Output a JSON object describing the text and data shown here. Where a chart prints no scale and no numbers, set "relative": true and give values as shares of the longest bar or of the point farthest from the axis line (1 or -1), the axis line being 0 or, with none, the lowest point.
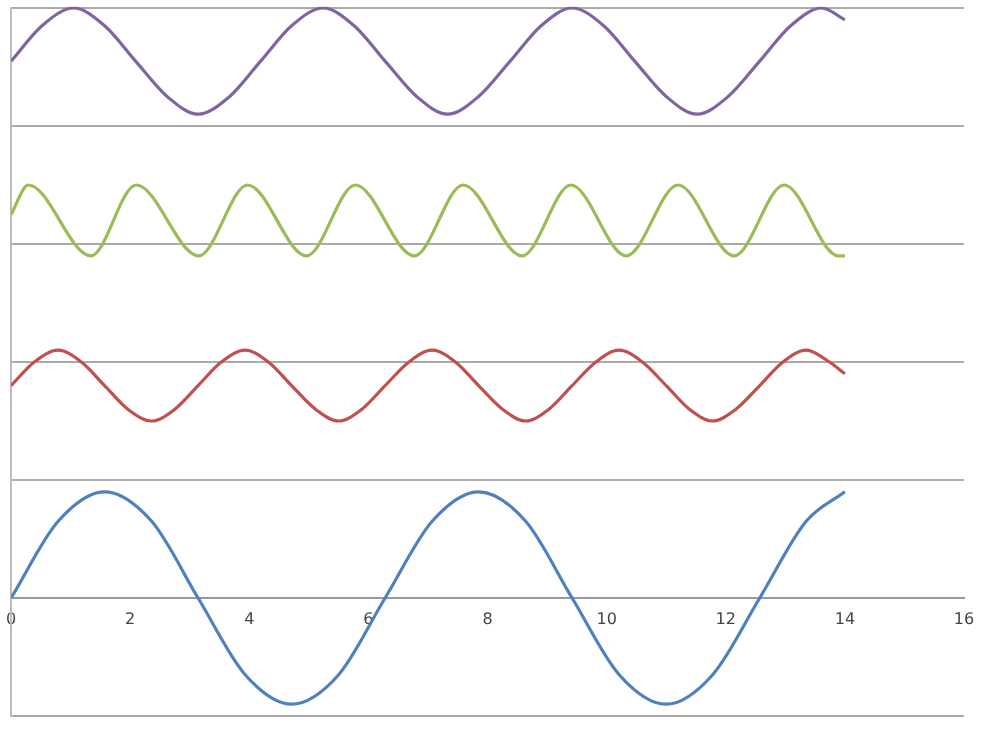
{
  "chart_data": {
    "type": "line",
    "relative": true,
    "xlim": [
      0,
      16
    ],
    "xticks": [
      0,
      2,
      4,
      6,
      8,
      10,
      12,
      14,
      16
    ],
    "grid": "y",
    "legend": false,
    "marker": "none",
    "line_style": "solid",
    "series": [
      {
        "color": "#8064a2",
        "x": [
          0,
          0.52,
          1.05,
          1.57,
          2.09,
          2.62,
          3.14,
          3.67,
          4.19,
          4.71,
          5.24,
          5.76,
          6.28,
          6.81,
          7.33,
          7.85,
          8.38,
          8.9,
          9.42,
          9.95,
          10.47,
          11.0,
          11.52,
          12.04,
          12.57,
          13.09,
          13.61,
          14
        ],
        "values": [
          0.91,
          0.97,
          1.0,
          0.97,
          0.91,
          0.85,
          0.82,
          0.85,
          0.91,
          0.97,
          1.0,
          0.97,
          0.91,
          0.85,
          0.82,
          0.85,
          0.91,
          0.97,
          1.0,
          0.97,
          0.91,
          0.85,
          0.82,
          0.85,
          0.91,
          0.97,
          1.0,
          0.98
        ]
      },
      {
        "color": "#9bbb59",
        "x": [
          0,
          0.29,
          1.34,
          2.1,
          3.15,
          3.97,
          4.96,
          5.78,
          6.77,
          7.59,
          8.58,
          9.4,
          10.33,
          11.2,
          12.14,
          12.98,
          13.89,
          14
        ],
        "values": [
          0.65,
          0.7,
          0.58,
          0.7,
          0.58,
          0.7,
          0.58,
          0.7,
          0.58,
          0.7,
          0.58,
          0.7,
          0.58,
          0.7,
          0.58,
          0.7,
          0.58,
          0.58
        ]
      },
      {
        "color": "#c0504d",
        "x": [
          0,
          0.39,
          0.79,
          1.18,
          1.57,
          1.96,
          2.36,
          2.75,
          3.14,
          3.53,
          3.93,
          4.32,
          4.71,
          5.11,
          5.5,
          5.89,
          6.28,
          6.68,
          7.07,
          7.46,
          7.85,
          8.25,
          8.64,
          9.03,
          9.42,
          9.82,
          10.21,
          10.6,
          11.0,
          11.39,
          11.78,
          12.17,
          12.57,
          12.96,
          13.35,
          13.74,
          14
        ],
        "values": [
          0.36,
          0.4,
          0.42,
          0.4,
          0.36,
          0.32,
          0.3,
          0.32,
          0.36,
          0.4,
          0.42,
          0.4,
          0.36,
          0.32,
          0.3,
          0.32,
          0.36,
          0.4,
          0.42,
          0.4,
          0.36,
          0.32,
          0.3,
          0.32,
          0.36,
          0.4,
          0.42,
          0.4,
          0.36,
          0.32,
          0.3,
          0.32,
          0.36,
          0.4,
          0.42,
          0.4,
          0.38
        ]
      },
      {
        "color": "#4f81bd",
        "x": [
          0,
          0.79,
          1.57,
          2.36,
          3.14,
          3.93,
          4.71,
          5.5,
          6.28,
          7.07,
          7.85,
          8.64,
          9.42,
          10.21,
          11.0,
          11.78,
          12.57,
          13.35,
          14
        ],
        "values": [
          0,
          0.13,
          0.18,
          0.13,
          0,
          -0.13,
          -0.18,
          -0.13,
          0,
          0.13,
          0.18,
          0.13,
          0,
          -0.13,
          -0.18,
          -0.13,
          0,
          0.13,
          0.18
        ]
      }
    ]
  }
}
